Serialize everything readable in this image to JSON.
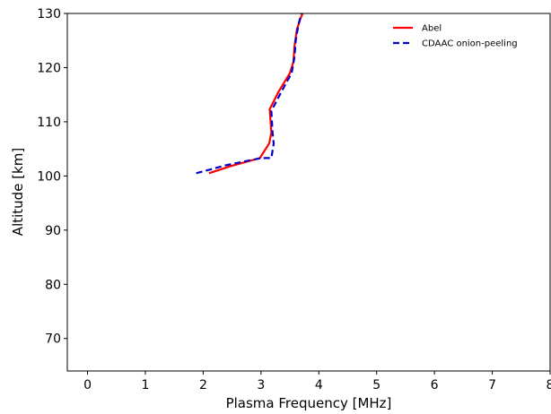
{
  "chart_data": {
    "type": "line",
    "xlabel": "Plasma Frequency [MHz]",
    "ylabel": "Altitude [km]",
    "xlim": [
      -0.35,
      8
    ],
    "ylim": [
      64,
      130
    ],
    "x_ticks": [
      0,
      1,
      2,
      3,
      4,
      5,
      6,
      7,
      8
    ],
    "y_ticks": [
      70,
      80,
      90,
      100,
      110,
      120,
      130
    ],
    "x_tick_labels": [
      "0",
      "1",
      "2",
      "3",
      "4",
      "5",
      "6",
      "7",
      "8"
    ],
    "y_tick_labels": [
      "70",
      "80",
      "90",
      "100",
      "110",
      "120",
      "130"
    ],
    "grid": false,
    "legend_position": "top-right",
    "series": [
      {
        "name": "Abel",
        "color": "#ff0000",
        "dash": "solid",
        "x": [
          2.1,
          2.5,
          2.98,
          3.14,
          3.18,
          3.15,
          3.3,
          3.5,
          3.56,
          3.58,
          3.62,
          3.68,
          3.72
        ],
        "y": [
          100.5,
          101.9,
          103.3,
          106.0,
          108.0,
          112.3,
          115.5,
          119.0,
          121.0,
          124.0,
          127.0,
          129.0,
          130.0
        ]
      },
      {
        "name": "CDAAC onion-peeling",
        "color": "#0000cc",
        "dash": "dashed",
        "x": [
          1.88,
          2.4,
          3.0,
          3.18,
          3.22,
          3.2,
          3.18,
          3.35,
          3.53,
          3.58,
          3.6,
          3.65,
          3.7
        ],
        "y": [
          100.5,
          102.0,
          103.3,
          103.3,
          106.0,
          108.0,
          112.0,
          115.5,
          119.0,
          122.0,
          125.0,
          128.0,
          130.0
        ]
      }
    ]
  }
}
